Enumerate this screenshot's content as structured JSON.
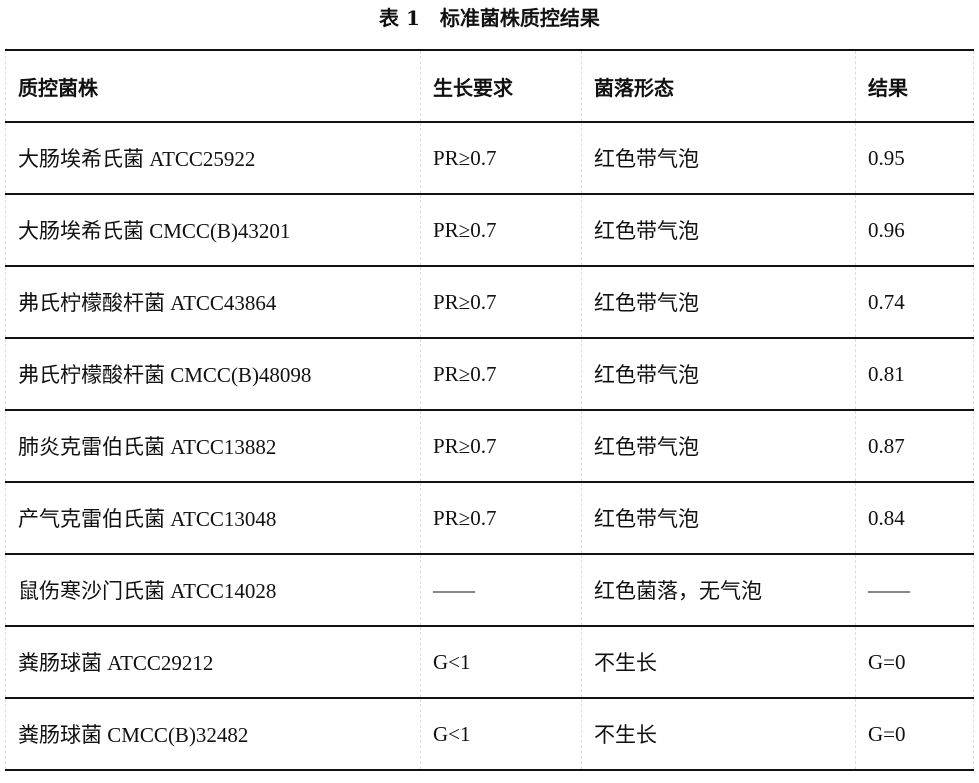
{
  "title": "表 1　标准菌株质控结果",
  "table": {
    "headers": [
      "质控菌株",
      "生长要求",
      "菌落形态",
      "结果"
    ],
    "rows": [
      [
        "大肠埃希氏菌 ATCC25922",
        "PR≥0.7",
        "红色带气泡",
        "0.95"
      ],
      [
        "大肠埃希氏菌 CMCC(B)43201",
        "PR≥0.7",
        "红色带气泡",
        "0.96"
      ],
      [
        "弗氏柠檬酸杆菌 ATCC43864",
        "PR≥0.7",
        "红色带气泡",
        "0.74"
      ],
      [
        "弗氏柠檬酸杆菌 CMCC(B)48098",
        "PR≥0.7",
        "红色带气泡",
        "0.81"
      ],
      [
        "肺炎克雷伯氏菌 ATCC13882",
        "PR≥0.7",
        "红色带气泡",
        "0.87"
      ],
      [
        "产气克雷伯氏菌 ATCC13048",
        "PR≥0.7",
        "红色带气泡",
        "0.84"
      ],
      [
        "鼠伤寒沙门氏菌 ATCC14028",
        "——",
        "红色菌落，无气泡",
        "——"
      ],
      [
        "粪肠球菌 ATCC29212",
        "G<1",
        "不生长",
        "G=0"
      ],
      [
        "粪肠球菌 CMCC(B)32482",
        "G<1",
        "不生长",
        "G=0"
      ]
    ]
  }
}
